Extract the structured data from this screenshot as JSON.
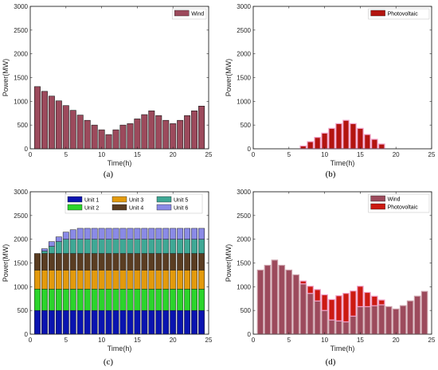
{
  "chart_data": [
    {
      "type": "bar",
      "caption": "(a)",
      "xlabel": "Time(h)",
      "ylabel": "Power(MW)",
      "xlim": [
        0,
        25
      ],
      "ylim": [
        0,
        3000
      ],
      "xticks": [
        0,
        5,
        10,
        15,
        20,
        25
      ],
      "yticks": [
        0,
        500,
        1000,
        1500,
        2000,
        2500,
        3000
      ],
      "x": [
        1,
        2,
        3,
        4,
        5,
        6,
        7,
        8,
        9,
        10,
        11,
        12,
        13,
        14,
        15,
        16,
        17,
        18,
        19,
        20,
        21,
        22,
        23,
        24
      ],
      "series": [
        {
          "name": "Wind",
          "color": "#9c4a5c",
          "values": [
            1310,
            1210,
            1110,
            1010,
            910,
            810,
            710,
            600,
            500,
            400,
            300,
            400,
            500,
            530,
            630,
            720,
            800,
            700,
            600,
            530,
            600,
            700,
            800,
            900
          ]
        }
      ],
      "legend_position": "top-right",
      "grid": false
    },
    {
      "type": "bar",
      "caption": "(b)",
      "xlabel": "Time(h)",
      "ylabel": "Power(MW)",
      "xlim": [
        0,
        25
      ],
      "ylim": [
        0,
        3000
      ],
      "xticks": [
        0,
        5,
        10,
        15,
        20,
        25
      ],
      "yticks": [
        0,
        500,
        1000,
        1500,
        2000,
        2500,
        3000
      ],
      "x": [
        1,
        2,
        3,
        4,
        5,
        6,
        7,
        8,
        9,
        10,
        11,
        12,
        13,
        14,
        15,
        16,
        17,
        18,
        19,
        20,
        21,
        22,
        23,
        24
      ],
      "series": [
        {
          "name": "Photovoltaic",
          "color": "#b3140f",
          "values": [
            0,
            0,
            0,
            0,
            0,
            0,
            60,
            150,
            240,
            330,
            430,
            530,
            600,
            530,
            430,
            300,
            200,
            100,
            0,
            0,
            0,
            0,
            0,
            0
          ]
        }
      ],
      "legend_position": "top-right",
      "grid": false
    },
    {
      "type": "bar",
      "stacked": true,
      "caption": "(c)",
      "xlabel": "Time(h)",
      "ylabel": "Power(MW)",
      "xlim": [
        0,
        25
      ],
      "ylim": [
        0,
        3000
      ],
      "xticks": [
        0,
        5,
        10,
        15,
        20,
        25
      ],
      "yticks": [
        0,
        500,
        1000,
        1500,
        2000,
        2500,
        3000
      ],
      "x": [
        1,
        2,
        3,
        4,
        5,
        6,
        7,
        8,
        9,
        10,
        11,
        12,
        13,
        14,
        15,
        16,
        17,
        18,
        19,
        20,
        21,
        22,
        23,
        24
      ],
      "series": [
        {
          "name": "Unit 1",
          "color": "#0a14b0",
          "values": [
            500,
            500,
            500,
            500,
            500,
            500,
            500,
            500,
            500,
            500,
            500,
            500,
            500,
            500,
            500,
            500,
            500,
            500,
            500,
            500,
            500,
            500,
            500,
            500
          ]
        },
        {
          "name": "Unit 2",
          "color": "#2bd42b",
          "values": [
            450,
            450,
            450,
            450,
            450,
            450,
            450,
            450,
            450,
            450,
            450,
            450,
            450,
            450,
            450,
            450,
            450,
            450,
            450,
            450,
            450,
            450,
            450,
            450
          ]
        },
        {
          "name": "Unit 3",
          "color": "#e39a0c",
          "values": [
            400,
            400,
            400,
            400,
            400,
            400,
            400,
            400,
            400,
            400,
            400,
            400,
            400,
            400,
            400,
            400,
            400,
            400,
            400,
            400,
            400,
            400,
            400,
            400
          ]
        },
        {
          "name": "Unit 4",
          "color": "#5a3d22",
          "values": [
            350,
            350,
            350,
            350,
            350,
            350,
            350,
            350,
            350,
            350,
            350,
            350,
            350,
            350,
            350,
            350,
            350,
            350,
            350,
            350,
            350,
            350,
            350,
            350
          ]
        },
        {
          "name": "Unit 5",
          "color": "#3fa895",
          "values": [
            0,
            50,
            150,
            250,
            300,
            300,
            300,
            300,
            300,
            300,
            300,
            300,
            300,
            300,
            300,
            300,
            300,
            300,
            300,
            300,
            300,
            300,
            300,
            300
          ]
        },
        {
          "name": "Unit 6",
          "color": "#8a8ae6",
          "values": [
            0,
            50,
            100,
            100,
            150,
            200,
            230,
            230,
            230,
            230,
            230,
            230,
            230,
            230,
            230,
            230,
            230,
            230,
            230,
            230,
            230,
            230,
            230,
            230
          ]
        }
      ],
      "legend_position": "top",
      "grid": false
    },
    {
      "type": "bar",
      "caption": "(d)",
      "xlabel": "Time(h)",
      "ylabel": "Power(MW)",
      "xlim": [
        0,
        25
      ],
      "ylim": [
        0,
        3000
      ],
      "xticks": [
        0,
        5,
        10,
        15,
        20,
        25
      ],
      "yticks": [
        0,
        500,
        1000,
        1500,
        2000,
        2500,
        3000
      ],
      "x": [
        1,
        2,
        3,
        4,
        5,
        6,
        7,
        8,
        9,
        10,
        11,
        12,
        13,
        14,
        15,
        16,
        17,
        18,
        19,
        20,
        21,
        22,
        23,
        24
      ],
      "series": [
        {
          "name": "Wind",
          "color": "#9c4a5c",
          "values": [
            1350,
            1450,
            1560,
            1450,
            1350,
            1250,
            1060,
            860,
            700,
            500,
            300,
            280,
            260,
            380,
            580,
            580,
            600,
            620,
            580,
            530,
            600,
            700,
            800,
            900
          ]
        },
        {
          "name": "Photovoltaic",
          "color": "#cc1a12",
          "values": [
            0,
            0,
            0,
            0,
            0,
            0,
            60,
            150,
            240,
            330,
            430,
            530,
            600,
            530,
            430,
            300,
            200,
            100,
            0,
            0,
            0,
            0,
            0,
            0
          ]
        }
      ],
      "legend_position": "top-right",
      "grid": false
    }
  ]
}
